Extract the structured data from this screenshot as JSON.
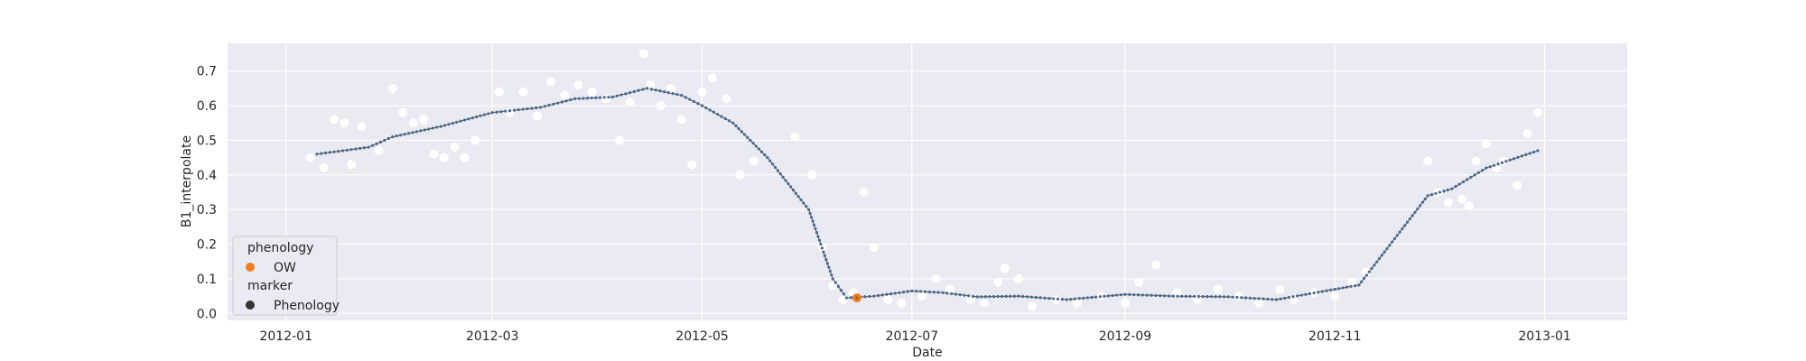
{
  "chart_data": {
    "type": "scatter",
    "title": "",
    "xlabel": "Date",
    "ylabel": "B1_interpolate",
    "x_ticks": [
      "2012-01",
      "2012-03",
      "2012-05",
      "2012-07",
      "2012-09",
      "2012-11",
      "2013-01"
    ],
    "y_ticks": [
      "0.0",
      "0.1",
      "0.2",
      "0.3",
      "0.4",
      "0.5",
      "0.6",
      "0.7"
    ],
    "xlim": [
      "2011-12-15",
      "2013-01-25"
    ],
    "ylim": [
      -0.02,
      0.78
    ],
    "grid": true,
    "legend_position": "lower-left",
    "colors": {
      "background": "#eaeaf2",
      "grid": "#ffffff",
      "observations": "#ffffff",
      "line": "#555555",
      "interpolated_markers": "#4c6b8a",
      "ow": "#f47c20",
      "phenology_marker": "#333333"
    },
    "legend": {
      "hue_title": "phenology",
      "hue_entries": [
        {
          "label": "OW",
          "color": "#f47c20"
        }
      ],
      "marker_title": "marker",
      "marker_entries": [
        {
          "label": "Phenology",
          "color": "#333333"
        }
      ]
    },
    "interpolated_series": {
      "x": [
        "2012-01-10",
        "2012-01-25",
        "2012-02-01",
        "2012-02-15",
        "2012-03-01",
        "2012-03-15",
        "2012-03-25",
        "2012-04-05",
        "2012-04-15",
        "2012-04-25",
        "2012-05-01",
        "2012-05-10",
        "2012-05-20",
        "2012-06-01",
        "2012-06-08",
        "2012-06-12",
        "2012-06-20",
        "2012-07-01",
        "2012-07-10",
        "2012-07-20",
        "2012-08-01",
        "2012-08-15",
        "2012-09-01",
        "2012-09-15",
        "2012-10-01",
        "2012-10-15",
        "2012-11-01",
        "2012-11-08",
        "2012-11-28",
        "2012-12-05",
        "2012-12-15",
        "2012-12-30"
      ],
      "y": [
        0.46,
        0.48,
        0.51,
        0.54,
        0.58,
        0.595,
        0.62,
        0.625,
        0.65,
        0.63,
        0.6,
        0.55,
        0.45,
        0.3,
        0.1,
        0.045,
        0.05,
        0.065,
        0.06,
        0.048,
        0.05,
        0.04,
        0.055,
        0.05,
        0.048,
        0.04,
        0.07,
        0.082,
        0.34,
        0.36,
        0.42,
        0.47
      ]
    },
    "observations": {
      "x": [
        "2012-01-08",
        "2012-01-12",
        "2012-01-15",
        "2012-01-18",
        "2012-01-20",
        "2012-01-23",
        "2012-01-28",
        "2012-02-01",
        "2012-02-04",
        "2012-02-07",
        "2012-02-10",
        "2012-02-13",
        "2012-02-16",
        "2012-02-19",
        "2012-02-22",
        "2012-02-25",
        "2012-03-03",
        "2012-03-06",
        "2012-03-10",
        "2012-03-14",
        "2012-03-18",
        "2012-03-22",
        "2012-03-26",
        "2012-03-30",
        "2012-04-03",
        "2012-04-07",
        "2012-04-10",
        "2012-04-14",
        "2012-04-16",
        "2012-04-19",
        "2012-04-22",
        "2012-04-25",
        "2012-04-28",
        "2012-05-01",
        "2012-05-04",
        "2012-05-08",
        "2012-05-12",
        "2012-05-16",
        "2012-05-28",
        "2012-06-02",
        "2012-06-05",
        "2012-06-08",
        "2012-06-11",
        "2012-06-14",
        "2012-06-17",
        "2012-06-20",
        "2012-06-24",
        "2012-06-28",
        "2012-07-04",
        "2012-07-08",
        "2012-07-12",
        "2012-07-18",
        "2012-07-22",
        "2012-07-26",
        "2012-07-28",
        "2012-08-01",
        "2012-08-05",
        "2012-08-12",
        "2012-08-18",
        "2012-08-25",
        "2012-09-01",
        "2012-09-05",
        "2012-09-10",
        "2012-09-16",
        "2012-09-22",
        "2012-09-28",
        "2012-10-04",
        "2012-10-10",
        "2012-10-16",
        "2012-10-20",
        "2012-10-26",
        "2012-11-01",
        "2012-11-06",
        "2012-11-10",
        "2012-11-28",
        "2012-12-01",
        "2012-12-04",
        "2012-12-08",
        "2012-12-10",
        "2012-12-12",
        "2012-12-15",
        "2012-12-18",
        "2012-12-20",
        "2012-12-24",
        "2012-12-27",
        "2012-12-30"
      ],
      "y": [
        0.45,
        0.42,
        0.56,
        0.55,
        0.43,
        0.54,
        0.47,
        0.65,
        0.58,
        0.55,
        0.56,
        0.46,
        0.45,
        0.48,
        0.45,
        0.5,
        0.64,
        0.58,
        0.64,
        0.57,
        0.67,
        0.63,
        0.66,
        0.64,
        0.62,
        0.5,
        0.61,
        0.75,
        0.66,
        0.6,
        0.65,
        0.56,
        0.43,
        0.64,
        0.68,
        0.62,
        0.4,
        0.44,
        0.51,
        0.4,
        0.19,
        0.08,
        0.04,
        0.06,
        0.35,
        0.19,
        0.04,
        0.03,
        0.05,
        0.1,
        0.07,
        0.04,
        0.03,
        0.09,
        0.13,
        0.1,
        0.02,
        0.04,
        0.03,
        0.05,
        0.03,
        0.09,
        0.14,
        0.06,
        0.04,
        0.07,
        0.05,
        0.03,
        0.07,
        0.04,
        0.06,
        0.05,
        0.09,
        0.12,
        0.44,
        0.35,
        0.32,
        0.33,
        0.31,
        0.44,
        0.49,
        0.42,
        0.44,
        0.37,
        0.52,
        0.58
      ]
    },
    "ow_point": {
      "x": "2012-06-15",
      "y": 0.045
    }
  }
}
